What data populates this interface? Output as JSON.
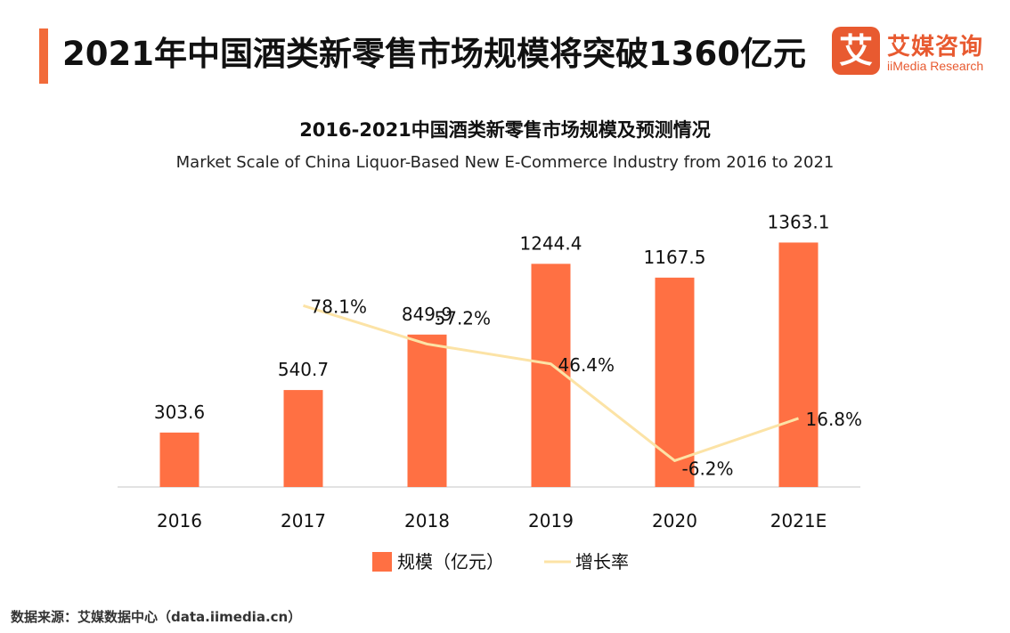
{
  "page": {
    "title": "2021年中国酒类新零售市场规模将突破1360亿元",
    "source": "数据来源：艾媒数据中心（data.iimedia.cn）"
  },
  "logo": {
    "mark": "艾",
    "name_cn": "艾媒咨询",
    "name_en": "iiMedia Research"
  },
  "colors": {
    "accent": "#f26b3a",
    "bar": "#ff7043",
    "line": "#fce3a6",
    "axis": "#d9d9d9",
    "logo": "#e85a30"
  },
  "chart_data": {
    "type": "bar",
    "title": "2016-2021中国酒类新零售市场规模及预测情况",
    "subtitle": "Market Scale of China  Liquor-Based New E-Commerce Industry from 2016 to 2021",
    "categories": [
      "2016",
      "2017",
      "2018",
      "2019",
      "2020",
      "2021E"
    ],
    "series": [
      {
        "name": "规模（亿元）",
        "type": "bar",
        "axis": "left",
        "values": [
          303.6,
          540.7,
          849.9,
          1244.4,
          1167.5,
          1363.1
        ],
        "labels": [
          "303.6",
          "540.7",
          "849.9",
          "1244.4",
          "1167.5",
          "1363.1"
        ]
      },
      {
        "name": "增长率",
        "type": "line",
        "axis": "right",
        "values": [
          null,
          78.1,
          57.2,
          46.4,
          -6.2,
          16.8
        ],
        "labels": [
          "",
          "78.1%",
          "57.2%",
          "46.4%",
          "-6.2%",
          "16.8%"
        ]
      }
    ],
    "ylim_left": [
      0,
      1400
    ],
    "ylim_right": [
      -20,
      100
    ],
    "grid": false,
    "legend": "bottom-center"
  }
}
